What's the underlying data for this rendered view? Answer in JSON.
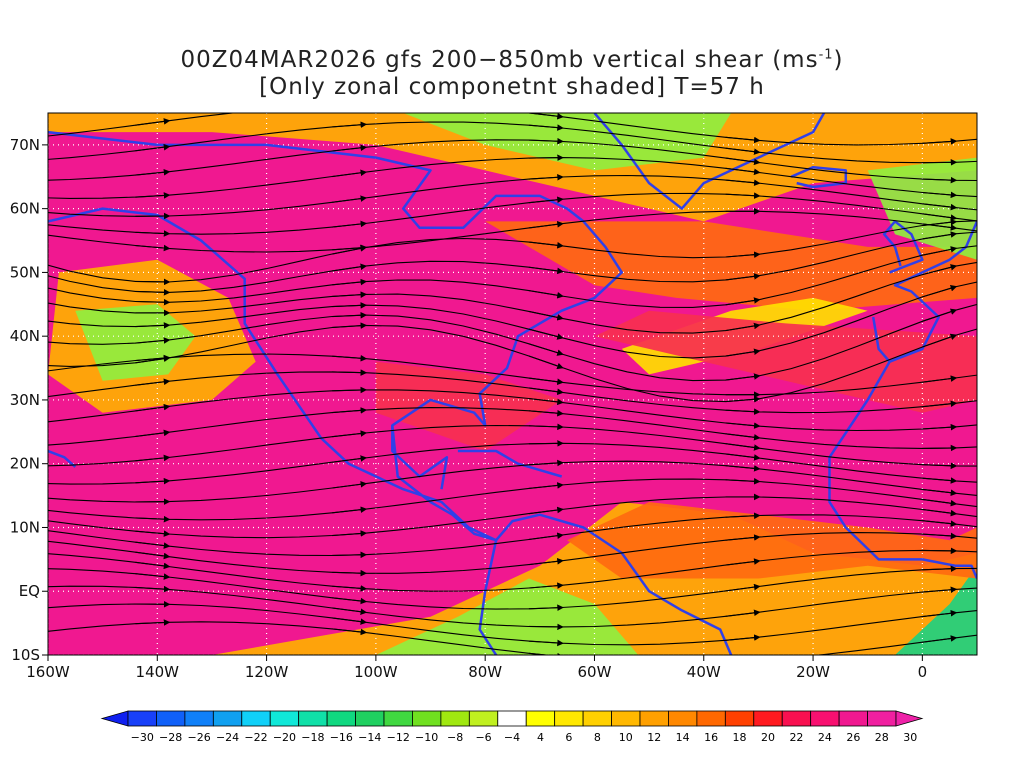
{
  "title": {
    "line1_prefix": "00Z04MAR2026 gfs 200−850mb vertical shear (ms",
    "line1_sup": "-1",
    "line1_suffix": ")",
    "line2": "[Only zonal componetnt shaded] T=57 h"
  },
  "map": {
    "lon_range": [
      -160,
      10
    ],
    "lat_range": [
      -10,
      75
    ],
    "lat_labels": [
      {
        "lat": 70,
        "text": "70N"
      },
      {
        "lat": 60,
        "text": "60N"
      },
      {
        "lat": 50,
        "text": "50N"
      },
      {
        "lat": 40,
        "text": "40N"
      },
      {
        "lat": 30,
        "text": "30N"
      },
      {
        "lat": 20,
        "text": "20N"
      },
      {
        "lat": 10,
        "text": "10N"
      },
      {
        "lat": 0,
        "text": "EQ"
      },
      {
        "lat": -10,
        "text": "10S"
      }
    ],
    "lon_labels": [
      {
        "lon": -160,
        "text": "160W"
      },
      {
        "lon": -140,
        "text": "140W"
      },
      {
        "lon": -120,
        "text": "120W"
      },
      {
        "lon": -100,
        "text": "100W"
      },
      {
        "lon": -80,
        "text": "80W"
      },
      {
        "lon": -60,
        "text": "60W"
      },
      {
        "lon": -40,
        "text": "40W"
      },
      {
        "lon": -20,
        "text": "20W"
      },
      {
        "lon": 0,
        "text": "0"
      }
    ],
    "colors": {
      "shear_strong": "#f01890",
      "shear_high": "#f73050",
      "shear_mid": "#ff6a10",
      "shear_low": "#ffb000",
      "shear_weak": "#ffe000",
      "easterly_weak": "#90ee40",
      "easterly_mid": "#20d080",
      "coastline": "#3040e8",
      "streamline": "#000000",
      "grid": "#ffffff"
    }
  },
  "colorbar": {
    "labels": [
      "−30",
      "−28",
      "−26",
      "−24",
      "−22",
      "−20",
      "−18",
      "−16",
      "−14",
      "−12",
      "−10",
      "−8",
      "−6",
      "−4",
      "4",
      "6",
      "8",
      "10",
      "12",
      "14",
      "16",
      "18",
      "20",
      "22",
      "24",
      "26",
      "28",
      "30"
    ],
    "colors": [
      "#1020f0",
      "#1840f8",
      "#1060f8",
      "#1080f8",
      "#10a0f0",
      "#10d0f8",
      "#10e8d8",
      "#10e0a8",
      "#10d880",
      "#20d060",
      "#40d840",
      "#70e020",
      "#a0e810",
      "#c0f020",
      "#ffffff",
      "#ffff00",
      "#ffe800",
      "#ffd000",
      "#ffb800",
      "#ffa000",
      "#ff8800",
      "#ff6800",
      "#ff4000",
      "#ff1a20",
      "#f81050",
      "#f81070",
      "#f01890",
      "#f020a0",
      "#ee22a8"
    ]
  }
}
